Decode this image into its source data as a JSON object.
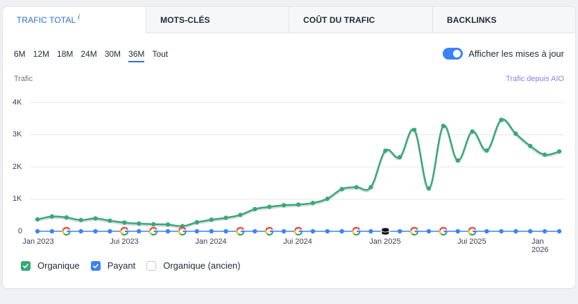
{
  "tabs": [
    {
      "label": "TRAFIC TOTAL",
      "active": true,
      "info": "i"
    },
    {
      "label": "MOTS-CLÉS",
      "active": false
    },
    {
      "label": "COÛT DU TRAFIC",
      "active": false
    },
    {
      "label": "BACKLINKS",
      "active": false
    }
  ],
  "ranges": [
    "6M",
    "12M",
    "18M",
    "24M",
    "30M",
    "36M",
    "Tout"
  ],
  "selected_range": "36M",
  "toggle": {
    "label": "Afficher les mises à jour",
    "on": true
  },
  "chart_header": {
    "ylabel": "Trafic",
    "aio_link": "Trafic depuis AIO"
  },
  "legend": [
    {
      "label": "Organique",
      "checked": true,
      "color": "#3aa876"
    },
    {
      "label": "Payant",
      "checked": true,
      "color": "#3b82f6"
    },
    {
      "label": "Organique (ancien)",
      "checked": false,
      "color": "#c4c8cf"
    }
  ],
  "colors": {
    "organic": "#3aa876",
    "paid": "#3b82f6",
    "accent": "#2e6fd0"
  },
  "chart_data": {
    "type": "line",
    "xlabel": "",
    "ylabel": "Trafic",
    "y_ticks": [
      "4K",
      "3K",
      "2K",
      "1K",
      "0"
    ],
    "ylim": [
      0,
      4000
    ],
    "x_ticks": [
      "Jan 2023",
      "Jui 2023",
      "Jan 2024",
      "Jui 2024",
      "Jan 2025",
      "Jui 2025",
      "Jan 2026"
    ],
    "x": [
      "2023-01",
      "2023-02",
      "2023-03",
      "2023-04",
      "2023-05",
      "2023-06",
      "2023-07",
      "2023-08",
      "2023-09",
      "2023-10",
      "2023-11",
      "2023-12",
      "2024-01",
      "2024-02",
      "2024-03",
      "2024-04",
      "2024-05",
      "2024-06",
      "2024-07",
      "2024-08",
      "2024-09",
      "2024-10",
      "2024-11",
      "2024-12",
      "2025-01",
      "2025-02",
      "2025-03",
      "2025-04",
      "2025-05",
      "2025-06",
      "2025-07",
      "2025-08",
      "2025-09",
      "2025-10",
      "2025-11",
      "2025-12",
      "2026-01"
    ],
    "series": [
      {
        "name": "Organique",
        "values": [
          370,
          460,
          430,
          350,
          400,
          330,
          270,
          240,
          220,
          210,
          160,
          280,
          360,
          420,
          510,
          690,
          760,
          810,
          830,
          880,
          1010,
          1310,
          1370,
          1370,
          2500,
          2300,
          3150,
          1330,
          3270,
          2200,
          3100,
          2510,
          3460,
          3030,
          2650,
          2380,
          2480
        ]
      },
      {
        "name": "Payant",
        "values": [
          0,
          0,
          0,
          0,
          0,
          0,
          0,
          0,
          0,
          0,
          0,
          0,
          0,
          0,
          0,
          0,
          0,
          0,
          0,
          0,
          0,
          0,
          0,
          0,
          0,
          0,
          0,
          0,
          0,
          0,
          0,
          0,
          0,
          0,
          0,
          0,
          0
        ]
      }
    ],
    "google_update_markers": [
      "2023-03",
      "2023-07",
      "2023-09",
      "2023-11",
      "2024-03",
      "2024-05",
      "2024-07",
      "2024-11",
      "2025-03",
      "2025-05",
      "2025-07"
    ],
    "special_marker": "2025-01",
    "grid": true
  }
}
